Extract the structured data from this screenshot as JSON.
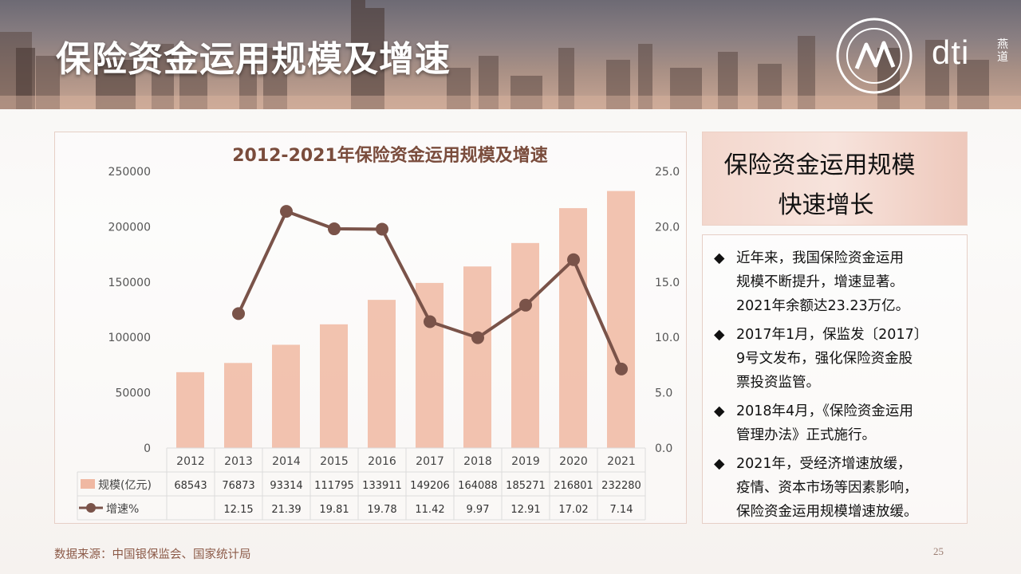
{
  "page": {
    "title": "保险资金运用规模及增速",
    "brand": "dti",
    "brand_sub": "燕道",
    "source": "数据来源：中国银保监会、国家统计局",
    "page_number": "25"
  },
  "side": {
    "headline_line1": "保险资金运用规模",
    "headline_line2": "快速增长",
    "bullet_symbol": "◆",
    "notes": [
      {
        "lines": [
          "近年来，我国保险资金运用",
          "规模不断提升，增速显著。",
          "2021年余额达23.23万亿。"
        ]
      },
      {
        "lines": [
          "2017年1月，保监发〔2017〕",
          "9号文发布，强化保险资金股",
          "票投资监管。"
        ]
      },
      {
        "lines": [
          "2018年4月，《保险资金运用",
          "管理办法》正式施行。"
        ]
      },
      {
        "lines": [
          "2021年，受经济增速放缓，",
          "疫情、资本市场等因素影响，",
          "保险资金运用规模增速放缓。"
        ]
      }
    ]
  },
  "chart_data": {
    "type": "bar",
    "title": "2012-2021年保险资金运用规模及增速",
    "categories": [
      "2012",
      "2013",
      "2014",
      "2015",
      "2016",
      "2017",
      "2018",
      "2019",
      "2020",
      "2021"
    ],
    "y_left": {
      "lim": [
        0,
        250000
      ],
      "ticks": [
        "0",
        "50000",
        "100000",
        "150000",
        "200000",
        "250000"
      ]
    },
    "y_right": {
      "lim": [
        0,
        25
      ],
      "ticks": [
        "0.0",
        "5.0",
        "10.0",
        "15.0",
        "20.0",
        "25.0"
      ]
    },
    "series": [
      {
        "name": "规模(亿元)",
        "type": "bar",
        "axis": "left",
        "color": "#f0b8a2",
        "values": [
          68543,
          76873,
          93314,
          111795,
          133911,
          149206,
          164088,
          185271,
          216801,
          232280
        ],
        "labels": [
          "68543",
          "76873",
          "93314",
          "111795",
          "133911",
          "149206",
          "164088",
          "185271",
          "216801",
          "232280"
        ]
      },
      {
        "name": "增速%",
        "type": "line",
        "axis": "right",
        "color": "#7a5349",
        "values": [
          null,
          12.15,
          21.39,
          19.81,
          19.78,
          11.42,
          9.97,
          12.91,
          17.02,
          7.14
        ],
        "labels": [
          "",
          "12.15",
          "21.39",
          "19.81",
          "19.78",
          "11.42",
          "9.97",
          "12.91",
          "17.02",
          "7.14"
        ]
      }
    ],
    "grid": false,
    "legend": "data-table"
  }
}
